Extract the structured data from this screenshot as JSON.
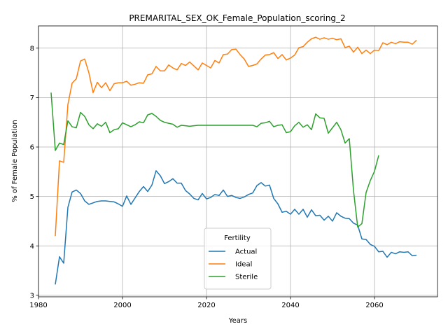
{
  "chart_data": {
    "type": "line",
    "title": "PREMARITAL_SEX_OK_Female_Population_scoring_2",
    "xlabel": "Years",
    "ylabel": "% of Female Population",
    "xlim": [
      1980,
      2075
    ],
    "ylim": [
      2.97,
      8.45
    ],
    "xticks": [
      1980,
      2000,
      2020,
      2040,
      2060
    ],
    "yticks": [
      3,
      4,
      5,
      6,
      7,
      8
    ],
    "grid": true,
    "legend": {
      "title": "Fertility",
      "placement": "lower-center"
    },
    "series": [
      {
        "name": "Actual",
        "color": "#1f77b4",
        "x": [
          1984,
          1985,
          1986,
          1987,
          1988,
          1989,
          1990,
          1991,
          1992,
          1993,
          1994,
          1995,
          1996,
          1997,
          1998,
          1999,
          2000,
          2001,
          2002,
          2003,
          2004,
          2005,
          2006,
          2007,
          2008,
          2009,
          2010,
          2011,
          2012,
          2013,
          2014,
          2015,
          2016,
          2017,
          2018,
          2019,
          2020,
          2021,
          2022,
          2023,
          2024,
          2025,
          2026,
          2027,
          2028,
          2029,
          2030,
          2031,
          2032,
          2033,
          2034,
          2035,
          2036,
          2037,
          2038,
          2039,
          2040,
          2041,
          2042,
          2043,
          2044,
          2045,
          2046,
          2047,
          2048,
          2049,
          2050,
          2051,
          2052,
          2053,
          2054,
          2055,
          2056,
          2057,
          2058,
          2059,
          2060,
          2061,
          2062,
          2063,
          2064,
          2065,
          2066,
          2067,
          2068,
          2069,
          2070
        ],
        "values": [
          3.22,
          3.78,
          3.65,
          4.78,
          5.09,
          5.13,
          5.06,
          4.91,
          4.84,
          4.87,
          4.9,
          4.91,
          4.91,
          4.9,
          4.89,
          4.85,
          4.8,
          5.01,
          4.84,
          4.97,
          5.1,
          5.2,
          5.1,
          5.23,
          5.52,
          5.42,
          5.26,
          5.3,
          5.36,
          5.27,
          5.27,
          5.12,
          5.05,
          4.96,
          4.93,
          5.06,
          4.95,
          4.98,
          5.04,
          5.02,
          5.13,
          5.0,
          5.02,
          4.98,
          4.96,
          4.99,
          5.04,
          5.07,
          5.22,
          5.28,
          5.21,
          5.23,
          4.96,
          4.85,
          4.68,
          4.7,
          4.64,
          4.74,
          4.64,
          4.74,
          4.58,
          4.73,
          4.61,
          4.62,
          4.52,
          4.6,
          4.5,
          4.67,
          4.6,
          4.56,
          4.55,
          4.46,
          4.42,
          4.14,
          4.13,
          4.03,
          3.99,
          3.88,
          3.89,
          3.77,
          3.87,
          3.84,
          3.88,
          3.87,
          3.88,
          3.8,
          3.81
        ]
      },
      {
        "name": "Ideal",
        "color": "#ff7f0e",
        "x": [
          1984,
          1985,
          1986,
          1987,
          1988,
          1989,
          1990,
          1991,
          1992,
          1993,
          1994,
          1995,
          1996,
          1997,
          1998,
          1999,
          2000,
          2001,
          2002,
          2003,
          2004,
          2005,
          2006,
          2007,
          2008,
          2009,
          2010,
          2011,
          2012,
          2013,
          2014,
          2015,
          2016,
          2017,
          2018,
          2019,
          2020,
          2021,
          2022,
          2023,
          2024,
          2025,
          2026,
          2027,
          2028,
          2029,
          2030,
          2031,
          2032,
          2033,
          2034,
          2035,
          2036,
          2037,
          2038,
          2039,
          2040,
          2041,
          2042,
          2043,
          2044,
          2045,
          2046,
          2047,
          2048,
          2049,
          2050,
          2051,
          2052,
          2053,
          2054,
          2055,
          2056,
          2057,
          2058,
          2059,
          2060,
          2061,
          2062,
          2063,
          2064,
          2065,
          2066,
          2067,
          2068,
          2069,
          2070
        ],
        "values": [
          4.2,
          5.72,
          5.69,
          6.86,
          7.29,
          7.38,
          7.74,
          7.78,
          7.5,
          7.1,
          7.31,
          7.2,
          7.3,
          7.14,
          7.28,
          7.3,
          7.3,
          7.33,
          7.25,
          7.27,
          7.3,
          7.29,
          7.46,
          7.48,
          7.63,
          7.54,
          7.54,
          7.66,
          7.6,
          7.56,
          7.69,
          7.65,
          7.72,
          7.64,
          7.56,
          7.7,
          7.65,
          7.6,
          7.75,
          7.7,
          7.87,
          7.88,
          7.97,
          7.98,
          7.87,
          7.78,
          7.63,
          7.65,
          7.68,
          7.78,
          7.86,
          7.87,
          7.91,
          7.79,
          7.87,
          7.76,
          7.8,
          7.86,
          8.01,
          8.03,
          8.12,
          8.19,
          8.22,
          8.18,
          8.21,
          8.18,
          8.2,
          8.17,
          8.19,
          8.01,
          8.04,
          7.92,
          8.02,
          7.89,
          7.96,
          7.89,
          7.96,
          7.95,
          8.11,
          8.07,
          8.12,
          8.09,
          8.13,
          8.12,
          8.12,
          8.08,
          8.16
        ]
      },
      {
        "name": "Sterile",
        "color": "#2ca02c",
        "x": [
          1983,
          1984,
          1985,
          1986,
          1987,
          1988,
          1989,
          1990,
          1991,
          1992,
          1993,
          1994,
          1995,
          1996,
          1997,
          1998,
          1999,
          2000,
          2001,
          2002,
          2003,
          2004,
          2005,
          2006,
          2007,
          2008,
          2009,
          2010,
          2011,
          2012,
          2013,
          2014,
          2015,
          2016,
          2017,
          2018,
          2019,
          2020,
          2021,
          2022,
          2023,
          2024,
          2025,
          2026,
          2027,
          2028,
          2029,
          2030,
          2031,
          2032,
          2033,
          2034,
          2035,
          2036,
          2037,
          2038,
          2039,
          2040,
          2041,
          2042,
          2043,
          2044,
          2045,
          2046,
          2047,
          2048,
          2049,
          2050,
          2051,
          2052,
          2053,
          2054,
          2055,
          2056,
          2057,
          2058,
          2059,
          2060,
          2061
        ],
        "values": [
          7.1,
          5.93,
          6.08,
          6.05,
          6.53,
          6.41,
          6.39,
          6.7,
          6.62,
          6.45,
          6.37,
          6.47,
          6.42,
          6.5,
          6.29,
          6.35,
          6.37,
          6.49,
          6.45,
          6.41,
          6.45,
          6.51,
          6.49,
          6.65,
          6.68,
          6.62,
          6.54,
          6.5,
          6.48,
          6.46,
          6.4,
          6.44,
          6.43,
          6.42,
          6.43,
          6.44,
          6.44,
          6.44,
          6.44,
          6.44,
          6.44,
          6.44,
          6.44,
          6.44,
          6.44,
          6.44,
          6.44,
          6.44,
          6.44,
          6.41,
          6.48,
          6.49,
          6.52,
          6.41,
          6.44,
          6.45,
          6.29,
          6.31,
          6.43,
          6.5,
          6.4,
          6.45,
          6.35,
          6.67,
          6.59,
          6.58,
          6.28,
          6.39,
          6.5,
          6.35,
          6.08,
          6.17,
          5.12,
          4.38,
          4.45,
          5.08,
          5.32,
          5.51,
          5.83
        ]
      }
    ]
  }
}
